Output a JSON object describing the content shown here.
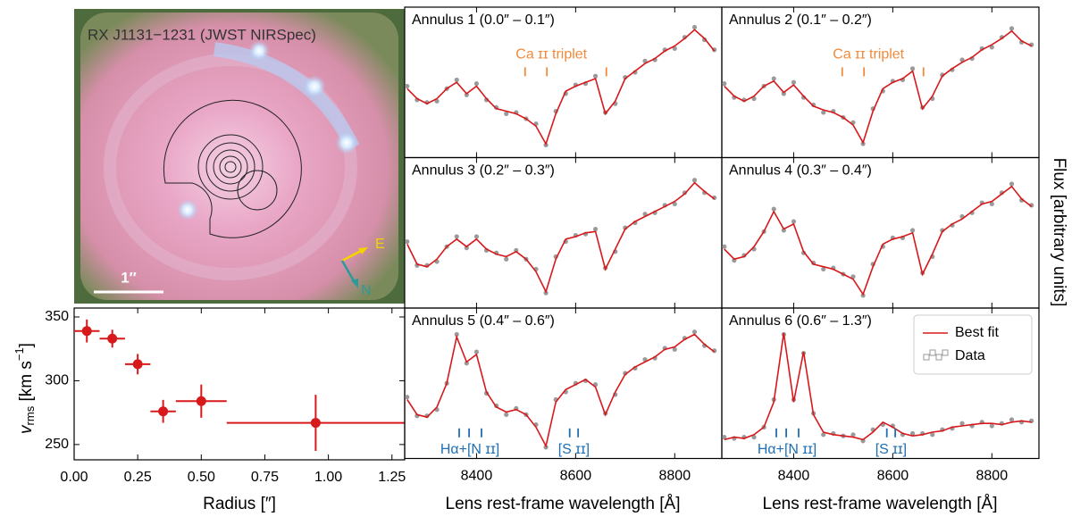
{
  "image": {
    "title": "RX J1131−1231 (JWST NIRSpec)",
    "scale_label": "1″",
    "east": "E",
    "north": "N"
  },
  "figure": {
    "x_label": "Lens rest-frame wavelength [Å]",
    "y_label": "Flux [arbitrary units]"
  },
  "chart_data": [
    {
      "type": "errorbar",
      "x": [
        0.05,
        0.15,
        0.25,
        0.35,
        0.5,
        0.95
      ],
      "xerr": [
        0.05,
        0.05,
        0.05,
        0.05,
        0.1,
        0.35
      ],
      "values": [
        339,
        333,
        313,
        276,
        284,
        267
      ],
      "yerr": [
        9,
        7,
        8,
        9,
        13,
        22
      ],
      "color": "#d7191c",
      "xlim": [
        0,
        1.3
      ],
      "ylim": [
        238,
        357
      ],
      "xticks": [
        {
          "value": 0,
          "label": "0.00"
        },
        {
          "value": 0.25,
          "label": "0.25"
        },
        {
          "value": 0.5,
          "label": "0.50"
        },
        {
          "value": 0.75,
          "label": "0.75"
        },
        {
          "value": 1,
          "label": "1.00"
        },
        {
          "value": 1.25,
          "label": "1.25"
        }
      ],
      "yticks": [
        250,
        300,
        350
      ],
      "x_label": "Radius [″]",
      "y_label": {
        "symbol": "v",
        "subscript": "rms",
        "unit": " [km s",
        "exponent": "−1",
        "close": "]"
      }
    },
    {
      "type": "spectrum",
      "title": "Annulus 1 (0.0″ – 0.1″)",
      "x": [
        8260,
        8280,
        8300,
        8320,
        8340,
        8360,
        8380,
        8400,
        8420,
        8440,
        8460,
        8480,
        8500,
        8520,
        8540,
        8560,
        8580,
        8600,
        8620,
        8640,
        8660,
        8680,
        8700,
        8720,
        8740,
        8760,
        8780,
        8800,
        8820,
        8840,
        8860,
        8880
      ],
      "series": [
        {
          "color": "#d7191c",
          "values": [
            0.5,
            0.42,
            0.38,
            0.42,
            0.5,
            0.55,
            0.46,
            0.52,
            0.42,
            0.34,
            0.32,
            0.3,
            0.26,
            0.2,
            0.06,
            0.3,
            0.48,
            0.52,
            0.55,
            0.58,
            0.3,
            0.4,
            0.58,
            0.64,
            0.7,
            0.74,
            0.8,
            0.84,
            0.9,
            0.97,
            0.9,
            0.8
          ]
        },
        {
          "color": "#9a9a9a",
          "values": [
            0.52,
            0.41,
            0.39,
            0.4,
            0.5,
            0.57,
            0.45,
            0.54,
            0.41,
            0.35,
            0.3,
            0.31,
            0.26,
            0.22,
            0.05,
            0.32,
            0.46,
            0.53,
            0.54,
            0.6,
            0.31,
            0.38,
            0.59,
            0.63,
            0.72,
            0.73,
            0.81,
            0.82,
            0.91,
            0.99,
            0.89,
            0.81
          ]
        }
      ],
      "xlim": [
        8255,
        8895
      ],
      "ylim": [
        -0.05,
        1.15
      ],
      "xticks": [
        8400,
        8600,
        8800
      ],
      "annotations": [
        {
          "text": "Ca ɪɪ triplet",
          "lines": [
            8498,
            8542,
            8662
          ],
          "color": "#f08a3c"
        }
      ]
    },
    {
      "type": "spectrum",
      "title": "Annulus 2 (0.1″ – 0.2″)",
      "x": [
        8260,
        8280,
        8300,
        8320,
        8340,
        8360,
        8380,
        8400,
        8420,
        8440,
        8460,
        8480,
        8500,
        8520,
        8540,
        8560,
        8580,
        8600,
        8620,
        8640,
        8660,
        8680,
        8700,
        8720,
        8740,
        8760,
        8780,
        8800,
        8820,
        8840,
        8860,
        8880
      ],
      "series": [
        {
          "color": "#d7191c",
          "values": [
            0.52,
            0.44,
            0.4,
            0.44,
            0.52,
            0.56,
            0.47,
            0.53,
            0.44,
            0.36,
            0.33,
            0.31,
            0.27,
            0.21,
            0.07,
            0.32,
            0.5,
            0.55,
            0.58,
            0.64,
            0.34,
            0.44,
            0.6,
            0.66,
            0.71,
            0.75,
            0.81,
            0.85,
            0.9,
            0.96,
            0.88,
            0.84
          ]
        },
        {
          "color": "#9a9a9a",
          "values": [
            0.54,
            0.43,
            0.41,
            0.42,
            0.52,
            0.58,
            0.46,
            0.55,
            0.43,
            0.37,
            0.31,
            0.32,
            0.27,
            0.23,
            0.06,
            0.34,
            0.48,
            0.56,
            0.57,
            0.66,
            0.35,
            0.42,
            0.61,
            0.65,
            0.73,
            0.74,
            0.82,
            0.83,
            0.91,
            0.98,
            0.87,
            0.85
          ]
        }
      ],
      "xlim": [
        8255,
        8895
      ],
      "ylim": [
        -0.05,
        1.15
      ],
      "xticks": [
        8400,
        8600,
        8800
      ],
      "annotations": [
        {
          "text": "Ca ɪɪ triplet",
          "lines": [
            8498,
            8542,
            8662
          ],
          "color": "#f08a3c"
        }
      ]
    },
    {
      "type": "spectrum",
      "title": "Annulus 3 (0.2″ – 0.3″)",
      "x": [
        8260,
        8280,
        8300,
        8320,
        8340,
        8360,
        8380,
        8400,
        8420,
        8440,
        8460,
        8480,
        8500,
        8520,
        8540,
        8560,
        8580,
        8600,
        8620,
        8640,
        8660,
        8680,
        8700,
        8720,
        8740,
        8760,
        8780,
        8800,
        8820,
        8840,
        8860,
        8880
      ],
      "series": [
        {
          "color": "#d7191c",
          "values": [
            0.46,
            0.3,
            0.28,
            0.34,
            0.44,
            0.5,
            0.44,
            0.5,
            0.42,
            0.38,
            0.36,
            0.4,
            0.34,
            0.24,
            0.08,
            0.34,
            0.5,
            0.52,
            0.55,
            0.56,
            0.26,
            0.42,
            0.58,
            0.64,
            0.68,
            0.72,
            0.76,
            0.8,
            0.86,
            0.95,
            0.88,
            0.82
          ]
        },
        {
          "color": "#9a9a9a",
          "values": [
            0.48,
            0.29,
            0.29,
            0.32,
            0.44,
            0.52,
            0.43,
            0.52,
            0.41,
            0.39,
            0.34,
            0.41,
            0.34,
            0.26,
            0.07,
            0.36,
            0.48,
            0.53,
            0.54,
            0.58,
            0.27,
            0.4,
            0.59,
            0.63,
            0.7,
            0.71,
            0.77,
            0.78,
            0.87,
            0.97,
            0.87,
            0.83
          ]
        }
      ],
      "xlim": [
        8255,
        8895
      ],
      "ylim": [
        -0.05,
        1.15
      ],
      "xticks": [
        8400,
        8600,
        8800
      ]
    },
    {
      "type": "spectrum",
      "title": "Annulus 4 (0.3″ – 0.4″)",
      "x": [
        8260,
        8280,
        8300,
        8320,
        8340,
        8360,
        8380,
        8400,
        8420,
        8440,
        8460,
        8480,
        8500,
        8520,
        8540,
        8560,
        8580,
        8600,
        8620,
        8640,
        8660,
        8680,
        8700,
        8720,
        8740,
        8760,
        8780,
        8800,
        8820,
        8840,
        8860,
        8880
      ],
      "series": [
        {
          "color": "#d7191c",
          "values": [
            0.42,
            0.34,
            0.36,
            0.44,
            0.56,
            0.72,
            0.58,
            0.62,
            0.4,
            0.3,
            0.28,
            0.26,
            0.22,
            0.18,
            0.06,
            0.28,
            0.46,
            0.5,
            0.52,
            0.55,
            0.22,
            0.38,
            0.56,
            0.62,
            0.66,
            0.72,
            0.78,
            0.8,
            0.86,
            0.92,
            0.82,
            0.76
          ]
        },
        {
          "color": "#9a9a9a",
          "values": [
            0.44,
            0.33,
            0.37,
            0.42,
            0.56,
            0.74,
            0.57,
            0.64,
            0.39,
            0.31,
            0.26,
            0.27,
            0.22,
            0.2,
            0.05,
            0.3,
            0.44,
            0.51,
            0.51,
            0.57,
            0.23,
            0.36,
            0.57,
            0.61,
            0.68,
            0.71,
            0.79,
            0.78,
            0.87,
            0.94,
            0.81,
            0.77
          ]
        }
      ],
      "xlim": [
        8255,
        8895
      ],
      "ylim": [
        -0.05,
        1.15
      ],
      "xticks": [
        8400,
        8600,
        8800
      ]
    },
    {
      "type": "spectrum",
      "title": "Annulus 5 (0.4″ – 0.6″)",
      "x": [
        8260,
        8280,
        8300,
        8320,
        8340,
        8360,
        8380,
        8400,
        8420,
        8440,
        8460,
        8480,
        8500,
        8520,
        8540,
        8560,
        8580,
        8600,
        8620,
        8640,
        8660,
        8680,
        8700,
        8720,
        8740,
        8760,
        8780,
        8800,
        8820,
        8840,
        8860,
        8880
      ],
      "series": [
        {
          "color": "#d7191c",
          "values": [
            0.42,
            0.3,
            0.28,
            0.36,
            0.55,
            0.92,
            0.72,
            0.78,
            0.48,
            0.36,
            0.32,
            0.34,
            0.3,
            0.2,
            0.05,
            0.4,
            0.5,
            0.54,
            0.58,
            0.52,
            0.3,
            0.48,
            0.62,
            0.68,
            0.72,
            0.76,
            0.82,
            0.84,
            0.9,
            0.94,
            0.86,
            0.8
          ]
        },
        {
          "color": "#9a9a9a",
          "values": [
            0.44,
            0.29,
            0.29,
            0.34,
            0.55,
            0.94,
            0.71,
            0.8,
            0.47,
            0.37,
            0.3,
            0.35,
            0.3,
            0.22,
            0.04,
            0.42,
            0.48,
            0.55,
            0.57,
            0.54,
            0.31,
            0.46,
            0.63,
            0.67,
            0.74,
            0.75,
            0.83,
            0.82,
            0.91,
            0.96,
            0.85,
            0.81
          ]
        }
      ],
      "xlim": [
        8255,
        8895
      ],
      "ylim": [
        -0.05,
        1.15
      ],
      "xticks": [
        8400,
        8600,
        8800
      ],
      "annotations": [
        {
          "text": "Hα+[N ɪɪ]",
          "lines": [
            8365,
            8385,
            8410
          ],
          "color": "#1f6fb2"
        },
        {
          "text": "[S ɪɪ]",
          "lines": [
            8588,
            8605
          ],
          "color": "#1f6fb2"
        }
      ]
    },
    {
      "type": "spectrum",
      "title": "Annulus 6 (0.6″ – 1.3″)",
      "x": [
        8260,
        8280,
        8300,
        8320,
        8340,
        8360,
        8380,
        8400,
        8420,
        8440,
        8460,
        8480,
        8500,
        8520,
        8540,
        8560,
        8580,
        8600,
        8620,
        8640,
        8660,
        8680,
        8700,
        8720,
        8740,
        8760,
        8780,
        8800,
        8820,
        8840,
        8860,
        8880
      ],
      "series": [
        {
          "name": "Best fit",
          "color": "#d7191c",
          "values": [
            0.1,
            0.12,
            0.11,
            0.14,
            0.2,
            0.4,
            0.95,
            0.4,
            0.8,
            0.3,
            0.16,
            0.14,
            0.13,
            0.12,
            0.1,
            0.16,
            0.24,
            0.2,
            0.15,
            0.13,
            0.14,
            0.16,
            0.17,
            0.2,
            0.21,
            0.22,
            0.23,
            0.23,
            0.22,
            0.24,
            0.25,
            0.24
          ]
        },
        {
          "name": "Data",
          "color": "#9a9a9a",
          "values": [
            0.12,
            0.11,
            0.12,
            0.12,
            0.2,
            0.42,
            0.94,
            0.42,
            0.79,
            0.31,
            0.14,
            0.15,
            0.13,
            0.14,
            0.09,
            0.18,
            0.22,
            0.21,
            0.14,
            0.15,
            0.15,
            0.14,
            0.18,
            0.19,
            0.23,
            0.21,
            0.24,
            0.21,
            0.23,
            0.26,
            0.24,
            0.25
          ]
        }
      ],
      "xlim": [
        8255,
        8895
      ],
      "ylim": [
        -0.05,
        1.15
      ],
      "xticks": [
        8400,
        8600,
        8800
      ],
      "legend": "upper right",
      "annotations": [
        {
          "text": "Hα+[N ɪɪ]",
          "lines": [
            8365,
            8385,
            8410
          ],
          "color": "#1f6fb2"
        },
        {
          "text": "[S ɪɪ]",
          "lines": [
            8588,
            8605
          ],
          "color": "#1f6fb2"
        }
      ]
    }
  ]
}
